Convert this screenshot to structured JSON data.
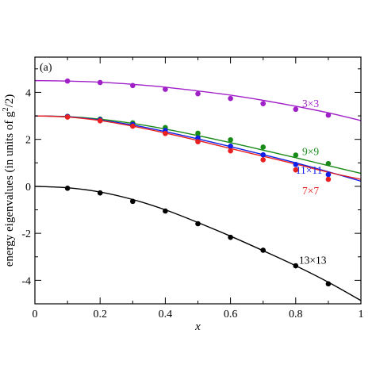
{
  "chart_data": {
    "type": "line",
    "panel_label": "(a)",
    "xlabel": "x",
    "ylabel_main": "energy eigenvalues   (in units of g",
    "ylabel_sup": "2",
    "ylabel_end": "/2)",
    "xlim": [
      0,
      1
    ],
    "ylim": [
      -5,
      5.5
    ],
    "xticks": [
      0,
      0.2,
      0.4,
      0.6,
      0.8,
      1
    ],
    "xtick_labels": [
      "0",
      "0.2",
      "0.4",
      "0.6",
      "0.8",
      "1"
    ],
    "yticks": [
      -4,
      -2,
      0,
      2,
      4
    ],
    "ytick_labels": [
      "-4",
      "-2",
      "0",
      "2",
      "4"
    ],
    "x_minor_step": 0.1,
    "y_minor_step": 1,
    "grid": false,
    "series": [
      {
        "name": "3×3",
        "color": "#a020c8",
        "curve": {
          "x": [
            0,
            0.1,
            0.2,
            0.3,
            0.4,
            0.5,
            0.6,
            0.7,
            0.8,
            0.9,
            1.0
          ],
          "y": [
            4.5,
            4.48,
            4.43,
            4.34,
            4.22,
            4.06,
            3.88,
            3.66,
            3.41,
            3.13,
            2.8
          ]
        },
        "points": {
          "x": [
            0.1,
            0.2,
            0.3,
            0.4,
            0.5,
            0.6,
            0.7,
            0.8,
            0.9
          ],
          "y": [
            4.48,
            4.42,
            4.29,
            4.13,
            3.94,
            3.74,
            3.52,
            3.28,
            3.03
          ]
        }
      },
      {
        "name": "9×9",
        "color": "#188a18",
        "curve": {
          "x": [
            0,
            0.1,
            0.2,
            0.3,
            0.4,
            0.5,
            0.6,
            0.7,
            0.8,
            0.9,
            1.0
          ],
          "y": [
            3.0,
            2.97,
            2.86,
            2.68,
            2.44,
            2.16,
            1.86,
            1.54,
            1.22,
            0.88,
            0.55
          ]
        },
        "points": {
          "x": [
            0.1,
            0.2,
            0.3,
            0.4,
            0.5,
            0.6,
            0.7,
            0.8,
            0.9
          ],
          "y": [
            2.98,
            2.86,
            2.7,
            2.5,
            2.26,
            1.98,
            1.67,
            1.33,
            0.97
          ]
        }
      },
      {
        "name": "11×11",
        "color": "#1020e8",
        "curve": {
          "x": [
            0,
            0.1,
            0.2,
            0.3,
            0.4,
            0.5,
            0.6,
            0.7,
            0.8,
            0.9,
            1.0
          ],
          "y": [
            3.0,
            2.96,
            2.82,
            2.61,
            2.33,
            2.02,
            1.69,
            1.35,
            1.0,
            0.62,
            0.22
          ]
        },
        "points": {
          "x": [
            0.1,
            0.2,
            0.3,
            0.4,
            0.5,
            0.6,
            0.7,
            0.8,
            0.9
          ],
          "y": [
            2.97,
            2.83,
            2.63,
            2.38,
            2.06,
            1.71,
            1.34,
            0.93,
            0.5
          ]
        }
      },
      {
        "name": "7×7",
        "color": "#e82020",
        "curve": {
          "x": [
            0,
            0.1,
            0.2,
            0.3,
            0.4,
            0.5,
            0.6,
            0.7,
            0.8,
            0.9,
            1.0
          ],
          "y": [
            3.0,
            2.95,
            2.8,
            2.56,
            2.27,
            1.95,
            1.61,
            1.28,
            0.95,
            0.6,
            0.3
          ]
        },
        "points": {
          "x": [
            0.1,
            0.2,
            0.3,
            0.4,
            0.5,
            0.6,
            0.7,
            0.8,
            0.9
          ],
          "y": [
            2.95,
            2.79,
            2.56,
            2.25,
            1.9,
            1.51,
            1.13,
            0.7,
            0.3
          ]
        }
      },
      {
        "name": "13×13",
        "color": "#000000",
        "curve": {
          "x": [
            0,
            0.1,
            0.2,
            0.3,
            0.4,
            0.5,
            0.6,
            0.7,
            0.8,
            0.9,
            1.0
          ],
          "y": [
            0.0,
            -0.06,
            -0.24,
            -0.56,
            -1.0,
            -1.54,
            -2.12,
            -2.74,
            -3.38,
            -4.08,
            -4.86
          ]
        },
        "points": {
          "x": [
            0.1,
            0.2,
            0.3,
            0.4,
            0.5,
            0.6,
            0.7,
            0.8,
            0.9
          ],
          "y": [
            -0.08,
            -0.28,
            -0.64,
            -1.05,
            -1.59,
            -2.17,
            -2.72,
            -3.38,
            -4.15
          ]
        }
      }
    ],
    "annotations": [
      {
        "text": "3×3",
        "x": 0.82,
        "y": 3.55,
        "color": "#a020c8"
      },
      {
        "text": "9×9",
        "x": 0.82,
        "y": 1.5,
        "color": "#188a18"
      },
      {
        "text": "11×11",
        "x": 0.8,
        "y": 0.7,
        "color": "#1020e8"
      },
      {
        "text": "7×7",
        "x": 0.82,
        "y": -0.17,
        "color": "#e82020"
      },
      {
        "text": "13×13",
        "x": 0.81,
        "y": -3.13,
        "color": "#000000"
      }
    ]
  }
}
